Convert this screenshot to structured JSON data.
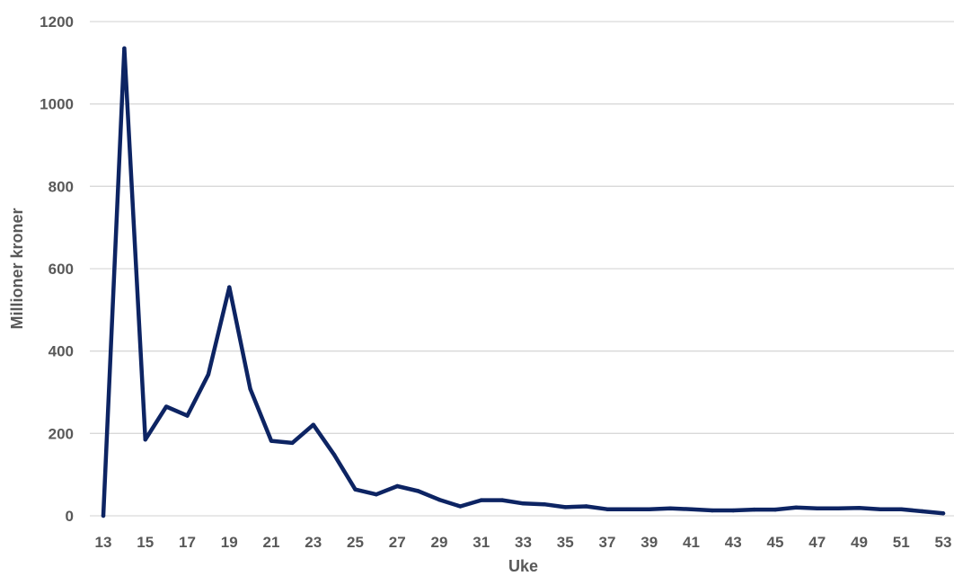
{
  "chart_data": {
    "type": "line",
    "xlabel": "Uke",
    "ylabel": "Millioner kroner",
    "ylim": [
      0,
      1200
    ],
    "yticks": [
      0,
      200,
      400,
      600,
      800,
      1000,
      1200
    ],
    "xlim": [
      13,
      53
    ],
    "xticks": [
      13,
      15,
      17,
      19,
      21,
      23,
      25,
      27,
      29,
      31,
      33,
      35,
      37,
      39,
      41,
      43,
      45,
      47,
      49,
      51,
      53
    ],
    "grid": true,
    "legend": "none",
    "series": [
      {
        "color": "#0d2463",
        "x": [
          13,
          14,
          15,
          16,
          17,
          18,
          19,
          20,
          21,
          22,
          23,
          24,
          25,
          26,
          27,
          28,
          29,
          30,
          31,
          32,
          33,
          34,
          35,
          36,
          37,
          38,
          39,
          40,
          41,
          42,
          43,
          44,
          45,
          46,
          47,
          48,
          49,
          50,
          51,
          52,
          53
        ],
        "values": [
          0,
          1135,
          185,
          265,
          243,
          343,
          555,
          308,
          182,
          177,
          221,
          148,
          64,
          52,
          72,
          60,
          39,
          23,
          38,
          38,
          30,
          28,
          21,
          23,
          16,
          16,
          16,
          18,
          16,
          13,
          13,
          15,
          15,
          20,
          18,
          18,
          19,
          16,
          16,
          11,
          6
        ]
      }
    ]
  }
}
